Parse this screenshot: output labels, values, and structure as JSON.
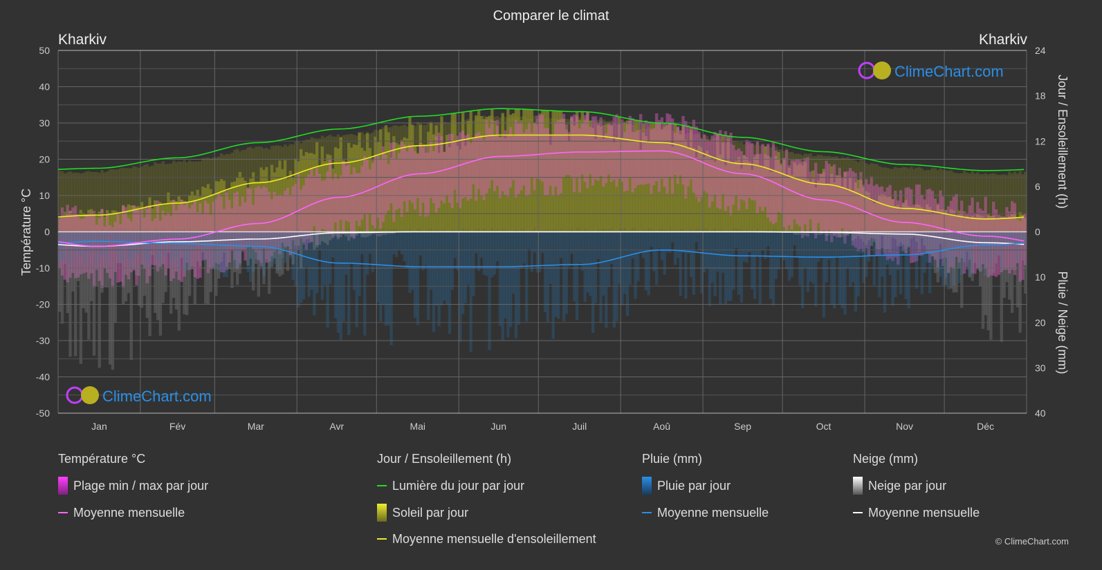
{
  "title": "Comparer le climat",
  "city_left": "Kharkiv",
  "city_right": "Kharkiv",
  "watermark": "ClimeChart.com",
  "copyright": "© ClimeChart.com",
  "chart_data": {
    "type": "line",
    "categories": [
      "Jan",
      "Fév",
      "Mar",
      "Avr",
      "Mai",
      "Jun",
      "Juil",
      "Aoû",
      "Sep",
      "Oct",
      "Nov",
      "Déc"
    ],
    "y_left": {
      "label": "Température °C",
      "range": [
        -50,
        50
      ],
      "ticks": [
        50,
        40,
        30,
        20,
        10,
        0,
        -10,
        -20,
        -30,
        -40,
        -50
      ]
    },
    "y_right_top": {
      "label": "Jour / Ensoleillement (h)",
      "range": [
        0,
        24
      ],
      "ticks": [
        24,
        18,
        12,
        6,
        0
      ]
    },
    "y_right_bottom": {
      "label": "Pluie / Neige (mm)",
      "range": [
        0,
        40
      ],
      "ticks": [
        0,
        10,
        20,
        30,
        40
      ]
    },
    "grid": true,
    "series": [
      {
        "name": "Moyenne mensuelle",
        "group": "temperature",
        "color": "#ff66ff",
        "values": [
          -4,
          -2,
          2.3,
          9.5,
          16,
          20.8,
          22,
          22.3,
          16,
          8.8,
          2.6,
          -1.2
        ]
      },
      {
        "name": "Lumière du jour par jour",
        "group": "daylight_h",
        "color": "#22dd22",
        "values": [
          8.4,
          9.8,
          11.8,
          13.6,
          15.3,
          16.3,
          15.9,
          14.4,
          12.5,
          10.6,
          8.9,
          8.1
        ]
      },
      {
        "name": "Moyenne mensuelle d'ensoleillement",
        "group": "sunshine_h",
        "color": "#eeee22",
        "values": [
          2.2,
          3.8,
          6.5,
          9.1,
          11.4,
          12.8,
          12.8,
          11.8,
          9.0,
          6.3,
          3.1,
          1.7
        ]
      },
      {
        "name": "Moyenne mensuelle",
        "group": "rain_mm",
        "color": "#2a8fe8",
        "values": [
          2.1,
          2.6,
          3.2,
          6.9,
          7.7,
          7.7,
          7.2,
          4.0,
          5.3,
          5.6,
          5.1,
          2.9
        ]
      },
      {
        "name": "Moyenne mensuelle",
        "group": "snow_mm",
        "color": "#ffffff",
        "values": [
          3.2,
          2.2,
          1.6,
          0.2,
          0,
          0,
          0,
          0,
          0,
          0.1,
          0.5,
          2.4
        ]
      }
    ]
  },
  "legend": {
    "temp": {
      "title": "Température °C",
      "items": [
        "Plage min / max par jour",
        "Moyenne mensuelle"
      ]
    },
    "sun": {
      "title": "Jour / Ensoleillement (h)",
      "items": [
        "Lumière du jour par jour",
        "Soleil par jour",
        "Moyenne mensuelle d'ensoleillement"
      ]
    },
    "rain": {
      "title": "Pluie (mm)",
      "items": [
        "Pluie par jour",
        "Moyenne mensuelle"
      ]
    },
    "snow": {
      "title": "Neige (mm)",
      "items": [
        "Neige par jour",
        "Moyenne mensuelle"
      ]
    }
  }
}
